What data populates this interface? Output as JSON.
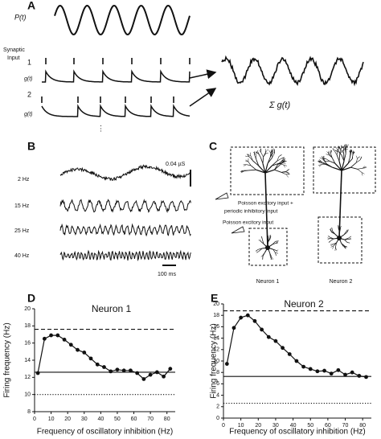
{
  "panel_a": {
    "label": "A",
    "signal_label": "P(t)",
    "synaptic_input": [
      "Synaptic",
      "Input"
    ],
    "inputs": [
      {
        "index": "1",
        "trace_label": "g(t)"
      },
      {
        "index": "2",
        "trace_label": "g(t)"
      }
    ],
    "ellipsis": "⋮",
    "sum_label": "Σ g(t)"
  },
  "panel_b": {
    "label": "B",
    "amplitude_scale": "0.04 µS",
    "time_scale": "100 ms",
    "traces": [
      "2 Hz",
      "15 Hz",
      "25 Hz",
      "40 Hz"
    ]
  },
  "panel_c": {
    "label": "C",
    "annotation_top": [
      "Poisson excitory input +",
      "periodic inhibitory input"
    ],
    "annotation_bottom": "Poisson excitory input",
    "neurons": [
      "Neuron 1",
      "Neuron 2"
    ]
  },
  "chart_data": [
    {
      "type": "line",
      "panel_label": "D",
      "title": "Neuron 1",
      "x_label": "Frequency of oscillatory inhibition (Hz)",
      "y_label": "Firing frequency (Hz)",
      "x": [
        2,
        6,
        10,
        14,
        18,
        22,
        26,
        30,
        34,
        38,
        42,
        46,
        50,
        54,
        58,
        62,
        66,
        70,
        74,
        78,
        82
      ],
      "values": [
        12.5,
        16.5,
        16.9,
        16.9,
        16.4,
        15.8,
        15.2,
        14.9,
        14.2,
        13.5,
        13.2,
        12.7,
        12.9,
        12.8,
        12.8,
        12.5,
        11.8,
        12.3,
        12.6,
        12.1,
        13.0
      ],
      "color": "#111111",
      "xlim": [
        0,
        85
      ],
      "xticks": [
        0,
        10,
        20,
        30,
        40,
        50,
        60,
        70,
        80
      ],
      "ylim": [
        8,
        20
      ],
      "yticks": [
        8,
        10,
        12,
        14,
        16,
        18,
        20
      ],
      "hlines": [
        {
          "value": 17.6,
          "style": "dashed"
        },
        {
          "value": 12.6,
          "style": "solid"
        },
        {
          "value": 10,
          "style": "dotted"
        }
      ]
    },
    {
      "type": "line",
      "panel_label": "E",
      "title": "Neuron 2",
      "x_label": "Frequency of oscillatory inhibition (Hz)",
      "y_label": "Firing frequency (Hz)",
      "x": [
        2,
        6,
        10,
        14,
        18,
        22,
        26,
        30,
        34,
        38,
        42,
        46,
        50,
        54,
        58,
        62,
        66,
        70,
        74,
        78,
        82
      ],
      "values": [
        9.5,
        15.8,
        17.6,
        18.0,
        17.0,
        15.5,
        14.2,
        13.5,
        12.3,
        11.2,
        10.0,
        9.0,
        8.6,
        8.2,
        8.3,
        7.8,
        8.4,
        7.6,
        8.0,
        7.4,
        7.2
      ],
      "color": "#111111",
      "xlim": [
        0,
        85
      ],
      "xticks": [
        0,
        10,
        20,
        30,
        40,
        50,
        60,
        70,
        80
      ],
      "ylim": [
        0,
        20
      ],
      "yticks": [
        0,
        2,
        4,
        6,
        8,
        10,
        12,
        14,
        16,
        18,
        20
      ],
      "hlines": [
        {
          "value": 18.8,
          "style": "dashed"
        },
        {
          "value": 7.3,
          "style": "solid"
        },
        {
          "value": 2.6,
          "style": "dotted"
        }
      ]
    }
  ]
}
